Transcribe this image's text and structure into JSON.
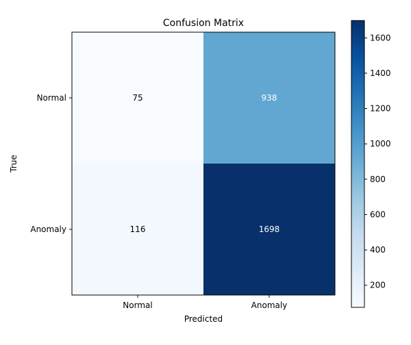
{
  "chart_data": {
    "type": "heatmap",
    "title": "Confusion Matrix",
    "xlabel": "Predicted",
    "ylabel": "True",
    "x_categories": [
      "Normal",
      "Anomaly"
    ],
    "y_categories": [
      "Normal",
      "Anomaly"
    ],
    "values": [
      [
        75,
        938
      ],
      [
        116,
        1698
      ]
    ],
    "colormap": "Blues",
    "colorbar": {
      "min": 75,
      "max": 1698,
      "ticks": [
        200,
        400,
        600,
        800,
        1000,
        1200,
        1400,
        1600
      ]
    },
    "annotation_colors": {
      "dark_text": "#000000",
      "light_text": "#ffffff"
    },
    "grid": false
  }
}
